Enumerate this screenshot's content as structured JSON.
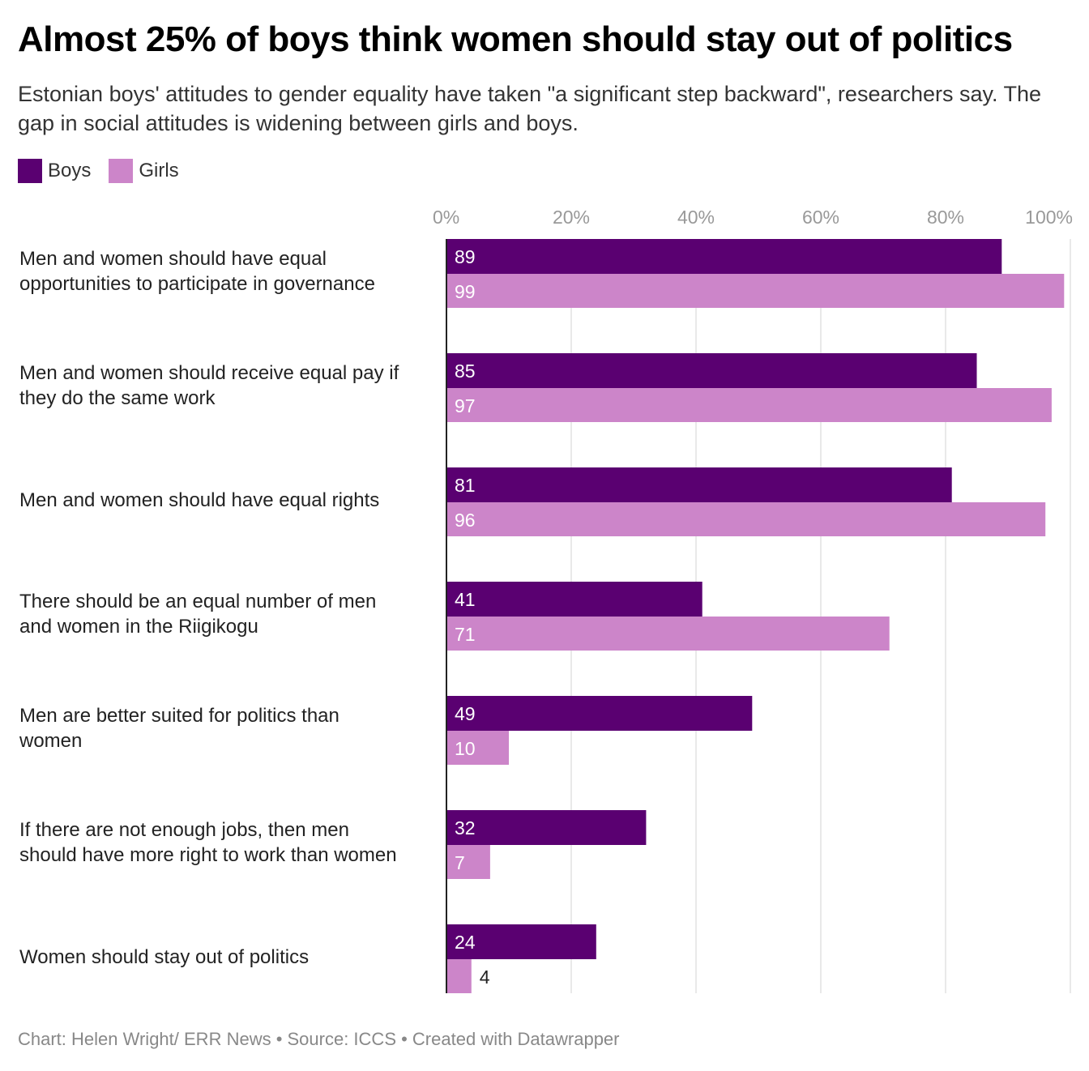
{
  "colors": {
    "boys": "#5a0071",
    "girls": "#cc85c9",
    "grid": "#e2e2e2",
    "tick_text": "#999999",
    "axis": "#222222"
  },
  "chart_data": {
    "type": "bar",
    "orientation": "horizontal",
    "title": "Almost 25% of boys think women should stay out of politics",
    "subtitle": "Estonian boys' attitudes to gender equality have taken \"a significant step backward\", researchers say. The gap in social attitudes is widening between girls and boys.",
    "xlabel": "",
    "ylabel": "",
    "xlim": [
      0,
      100
    ],
    "x_ticks": [
      "0%",
      "20%",
      "40%",
      "60%",
      "80%",
      "100%"
    ],
    "x_tick_values": [
      0,
      20,
      40,
      60,
      80,
      100
    ],
    "grid": true,
    "legend_position": "top-left",
    "categories": [
      "Men and women should have equal opportunities to participate in governance",
      "Men and women should receive equal pay if they do the same work",
      "Men and women should have equal rights",
      "There should be an equal number of men and women in the Riigikogu",
      "Men are better suited for politics than women",
      "If there are not enough jobs, then men should have more right to work than women",
      "Women should stay out of politics"
    ],
    "category_lines": [
      [
        "Men and women should have equal",
        "opportunities to participate in governance"
      ],
      [
        "Men and women should receive equal pay if",
        "they do the same work"
      ],
      [
        "Men and women should have equal rights"
      ],
      [
        "There should be an equal number of men",
        "and women in the Riigikogu"
      ],
      [
        "Men are better suited for politics than",
        "women"
      ],
      [
        "If there are not enough jobs, then men",
        "should have more right to work than women"
      ],
      [
        "Women should stay out of politics"
      ]
    ],
    "series": [
      {
        "name": "Boys",
        "values": [
          89,
          85,
          81,
          41,
          49,
          32,
          24
        ]
      },
      {
        "name": "Girls",
        "values": [
          99,
          97,
          96,
          71,
          10,
          7,
          4
        ]
      }
    ]
  },
  "legend": {
    "items": [
      {
        "label": "Boys"
      },
      {
        "label": "Girls"
      }
    ]
  },
  "footer": {
    "text": "Chart: Helen Wright/ ERR News  • Source: ICCS • Created with Datawrapper"
  }
}
